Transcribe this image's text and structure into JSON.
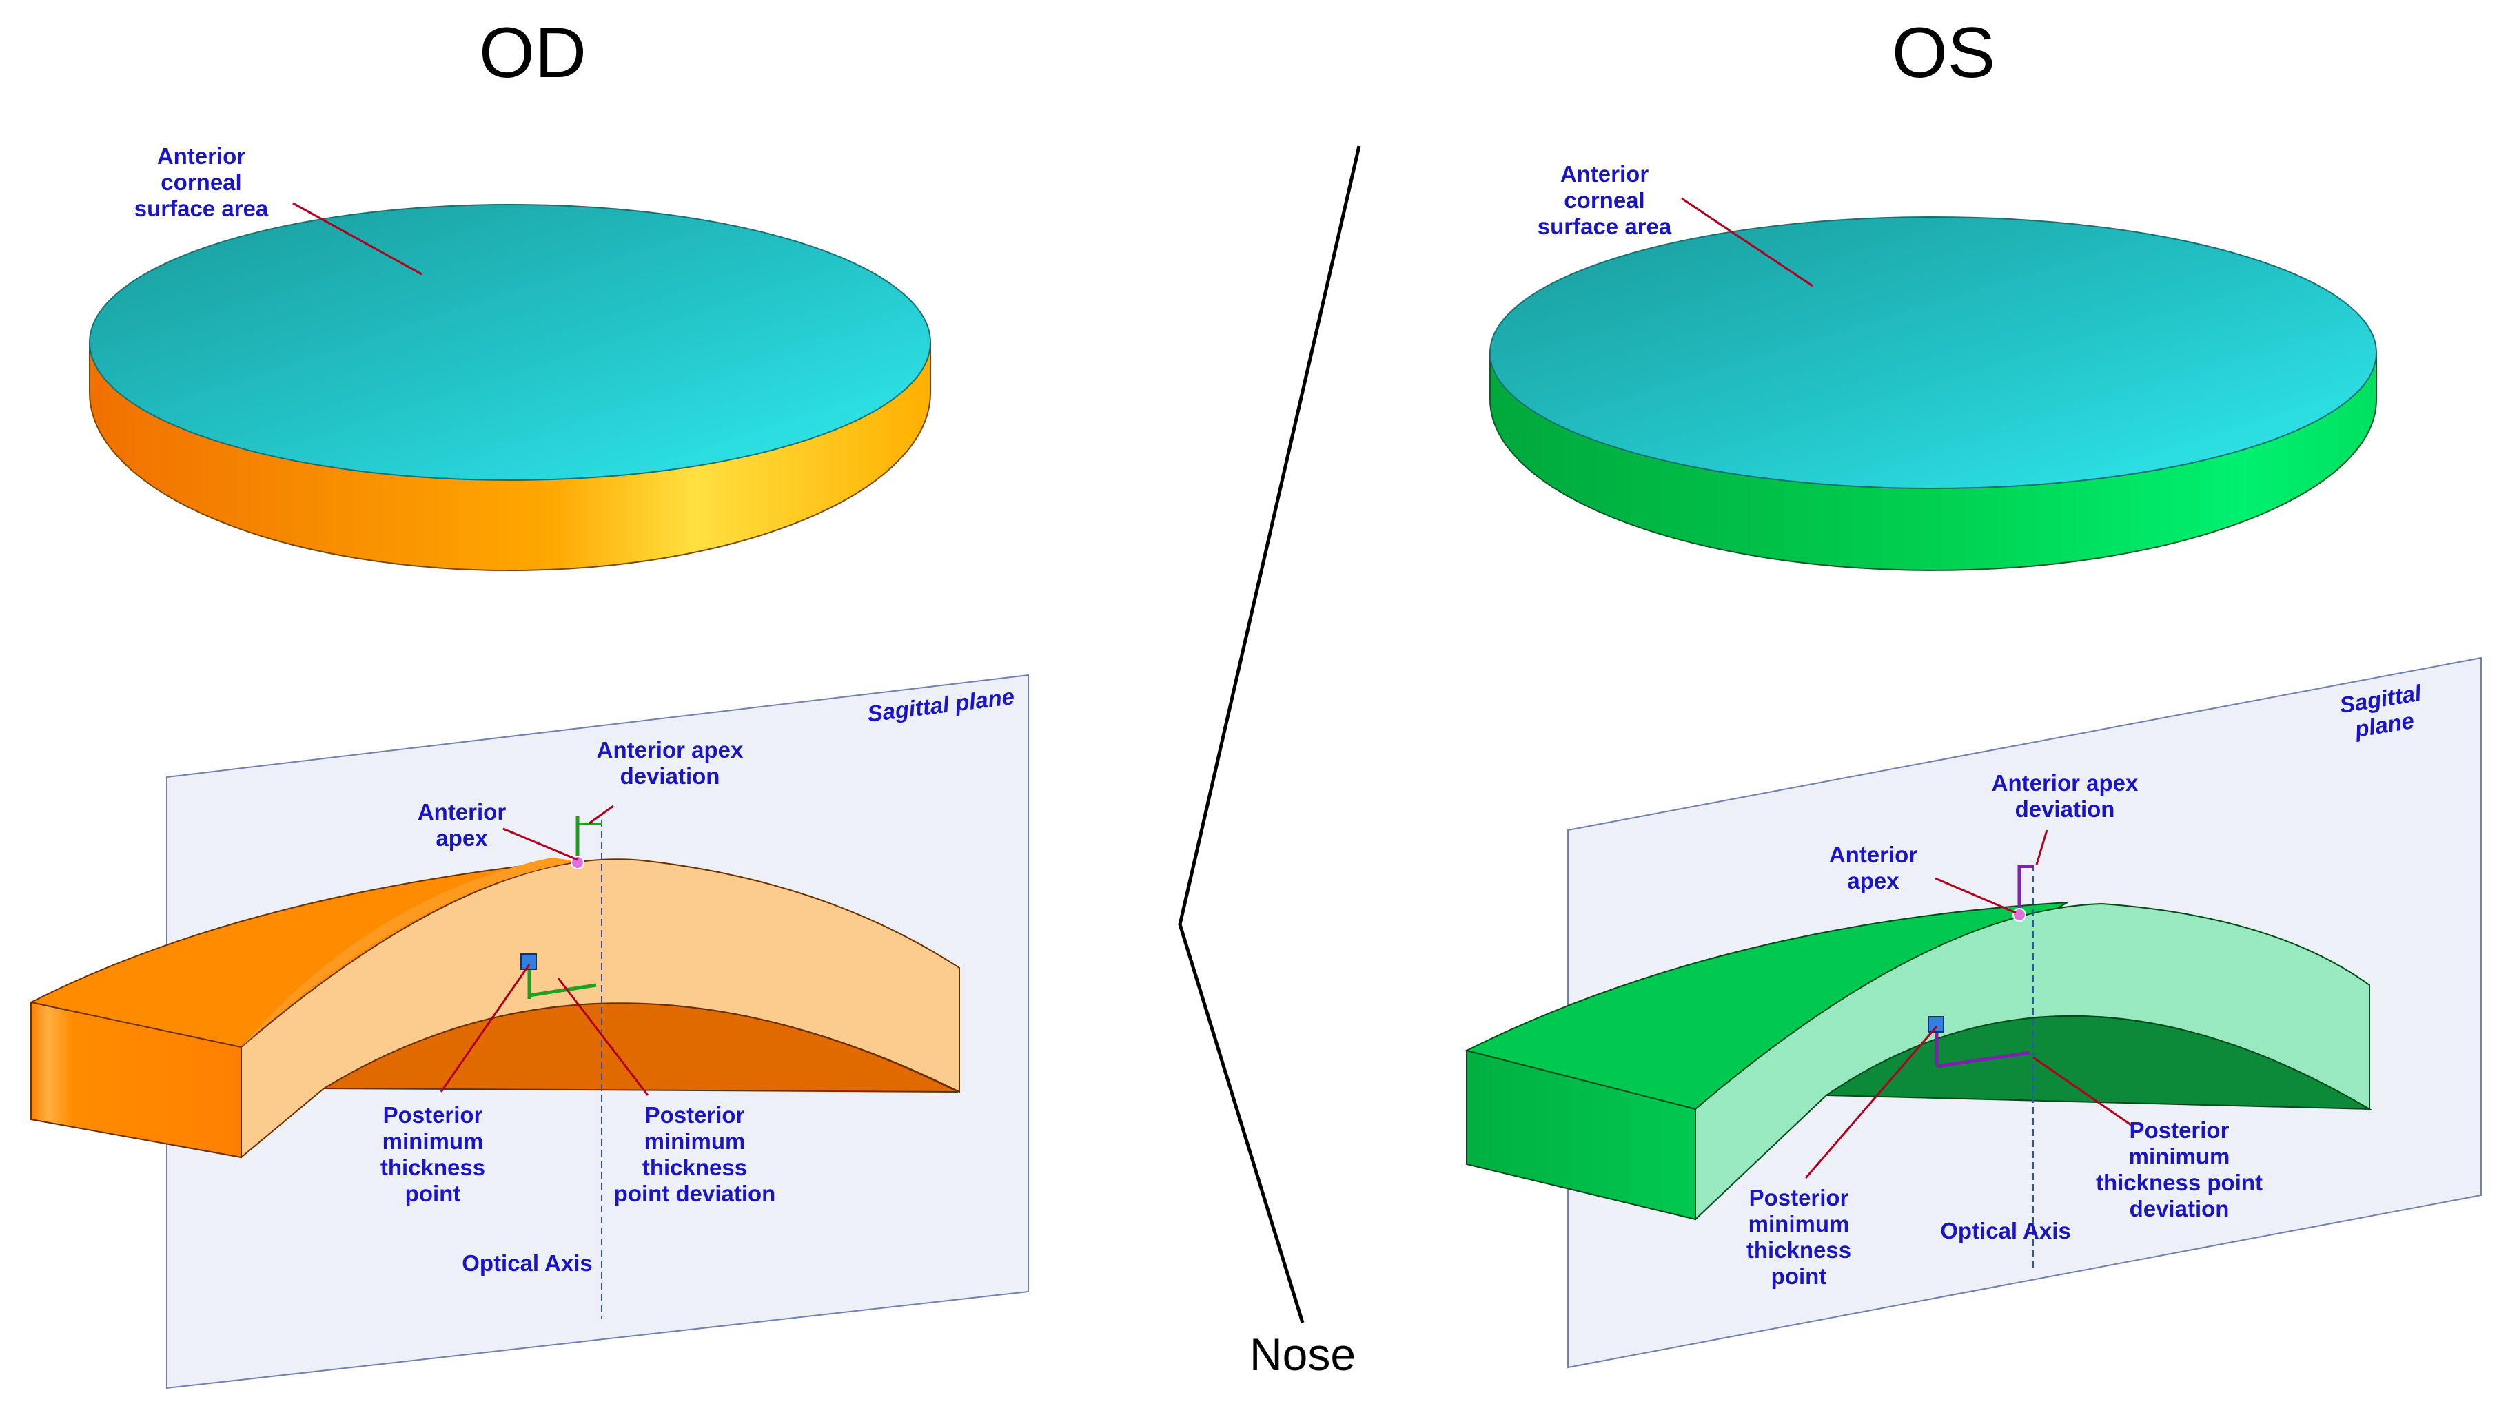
{
  "titles": {
    "od": "OD",
    "os": "OS",
    "nose": "Nose"
  },
  "od": {
    "surface": "Anterior\ncorneal\nsurface area",
    "sagittal": "Sagittal plane",
    "apex_dev": "Anterior apex\ndeviation",
    "apex": "Anterior\napex",
    "post_min": "Posterior\nminimum\nthickness\npoint",
    "post_dev": "Posterior\nminimum\nthickness\npoint deviation",
    "optical": "Optical Axis"
  },
  "os": {
    "surface": "Anterior\ncorneal\nsurface area",
    "sagittal": "Sagittal plane",
    "apex_dev": "Anterior apex\ndeviation",
    "apex": "Anterior\napex",
    "post_min": "Posterior\nminimum\nthickness\npoint",
    "post_dev": "Posterior\nminimum\nthickness point\ndeviation",
    "optical": "Optical Axis"
  },
  "colors": {
    "label_blue": "#1a14c8",
    "leader_red": "#b00020",
    "od_side": "#ff8a00",
    "od_section": "#fccb8e",
    "od_posterior": "#e06a00",
    "os_side": "#00c44a",
    "os_section": "#98e8c0",
    "os_posterior": "#0c8a3a",
    "top_surface": "#24c6c6",
    "plane": "#eef0f7"
  }
}
